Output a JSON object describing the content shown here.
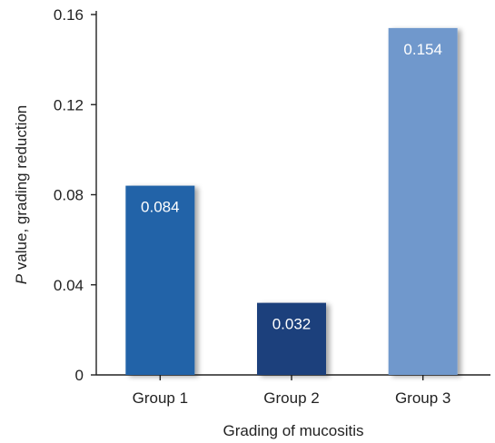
{
  "chart_data": {
    "type": "bar",
    "categories": [
      "Group 1",
      "Group 2",
      "Group 3"
    ],
    "values": [
      0.084,
      0.032,
      0.154
    ],
    "value_labels": [
      "0.084",
      "0.032",
      "0.154"
    ],
    "title": "",
    "xlabel": "Grading of mucositis",
    "ylabel_prefix": "P",
    "ylabel": " value, grading reduction",
    "ylim": [
      0,
      0.16
    ],
    "yticks": [
      0,
      0.04,
      0.08,
      0.12,
      0.16
    ],
    "ytick_labels": [
      "0",
      "0.04",
      "0.08",
      "0.12",
      "0.16"
    ],
    "grid": false,
    "colors": [
      "#2164a8",
      "#1f3f7b",
      "#6f98cc"
    ],
    "axis_color": "#222222",
    "label_color": "#ffffff"
  }
}
